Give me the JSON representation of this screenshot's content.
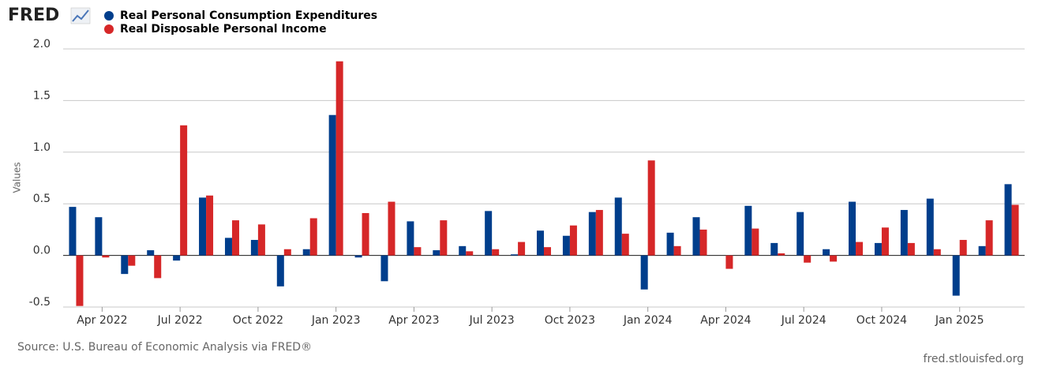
{
  "logo": "FRED",
  "footer": {
    "source": "Source: U.S. Bureau of Economic Analysis via FRED®",
    "site": "fred.stlouisfed.org"
  },
  "chart_data": {
    "type": "bar",
    "ylabel": "Values",
    "categories": [
      null,
      "Apr 2022",
      null,
      null,
      "Jul 2022",
      null,
      null,
      "Oct 2022",
      null,
      null,
      "Jan 2023",
      null,
      null,
      "Apr 2023",
      null,
      null,
      "Jul 2023",
      null,
      null,
      "Oct 2023",
      null,
      null,
      "Jan 2024",
      null,
      null,
      "Apr 2024",
      null,
      null,
      "Jul 2024",
      null,
      null,
      "Oct 2024",
      null,
      null,
      "Jan 2025",
      null,
      null
    ],
    "series": [
      {
        "name": "Real Personal Consumption Expenditures",
        "color": "#003e8c",
        "values": [
          0.47,
          0.37,
          -0.18,
          0.05,
          -0.05,
          0.56,
          0.17,
          0.15,
          -0.3,
          0.06,
          1.36,
          -0.02,
          -0.25,
          0.33,
          0.05,
          0.09,
          0.43,
          0.01,
          0.24,
          0.19,
          0.42,
          0.56,
          -0.33,
          0.22,
          0.37,
          0.0,
          0.48,
          0.12,
          0.42,
          0.06,
          0.52,
          0.12,
          0.44,
          0.55,
          -0.39,
          0.09,
          0.69
        ]
      },
      {
        "name": "Real Disposable Personal Income",
        "color": "#d62728",
        "values": [
          -0.49,
          -0.02,
          -0.1,
          -0.22,
          1.26,
          0.58,
          0.34,
          0.3,
          0.06,
          0.36,
          1.88,
          0.41,
          0.52,
          0.08,
          0.34,
          0.04,
          0.06,
          0.13,
          0.08,
          0.29,
          0.44,
          0.21,
          0.92,
          0.09,
          0.25,
          -0.13,
          0.26,
          0.02,
          -0.07,
          -0.06,
          0.13,
          0.27,
          0.12,
          0.06,
          0.15,
          0.34,
          0.49
        ]
      }
    ],
    "ylim": [
      -0.5,
      2.0
    ],
    "yticks": [
      -0.5,
      {
        "value": 0,
        "label": "0.0"
      },
      0.5,
      {
        "value": 1,
        "label": "1.0"
      },
      1.5,
      {
        "value": 2,
        "label": "2.0"
      }
    ],
    "grid": true
  }
}
